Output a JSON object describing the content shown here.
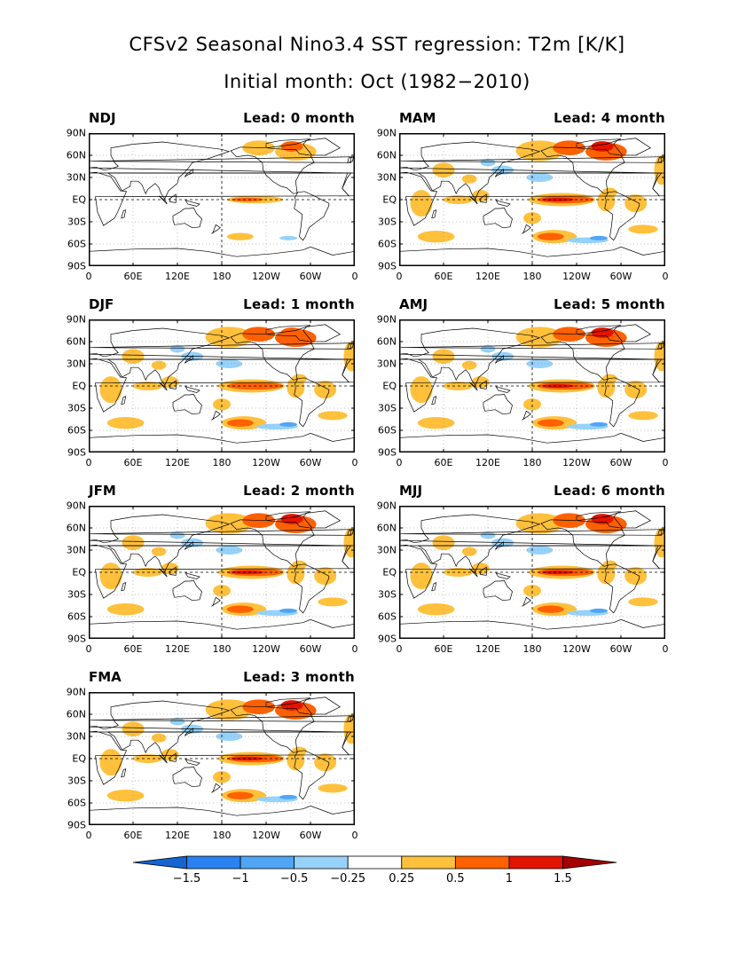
{
  "title_line1": "CFSv2 Seasonal Nino3.4 SST regression: T2m [K/K]",
  "title_line2": "Initial month: Oct (1982−2010)",
  "lat_ticks": [
    "90N",
    "60N",
    "30N",
    "EQ",
    "30S",
    "60S",
    "90S"
  ],
  "lon_ticks": [
    "0",
    "60E",
    "120E",
    "180",
    "120W",
    "60W",
    "0"
  ],
  "colors": {
    "-2": "#1464d2",
    "-1.25": "#2882f0",
    "-0.75": "#50a5f5",
    "-0.37": "#96d2fa",
    "0": "#ffffff",
    "0.37": "#ffc03c",
    "0.75": "#ff6000",
    "1.25": "#e11400",
    "2": "#a50000"
  },
  "panels": [
    {
      "season": "NDJ",
      "lead": "Lead: 0 month",
      "amp": 0.55
    },
    {
      "season": "DJF",
      "lead": "Lead: 1 month",
      "amp": 0.75
    },
    {
      "season": "JFM",
      "lead": "Lead: 2 month",
      "amp": 0.9
    },
    {
      "season": "FMA",
      "lead": "Lead: 3 month",
      "amp": 1.0
    },
    {
      "season": "MAM",
      "lead": "Lead: 4 month",
      "amp": 1.05
    },
    {
      "season": "AMJ",
      "lead": "Lead: 5 month",
      "amp": 1.05
    },
    {
      "season": "MJJ",
      "lead": "Lead: 6 month",
      "amp": 1.0
    }
  ],
  "colorbar": {
    "labels": [
      "−1.5",
      "−1",
      "−0.5",
      "−0.25",
      "0.25",
      "0.5",
      "1",
      "1.5"
    ],
    "colors": [
      "#1464d2",
      "#2882f0",
      "#50a5f5",
      "#96d2fa",
      "#ffffff",
      "#ffc03c",
      "#ff6000",
      "#e11400",
      "#a50000"
    ]
  }
}
